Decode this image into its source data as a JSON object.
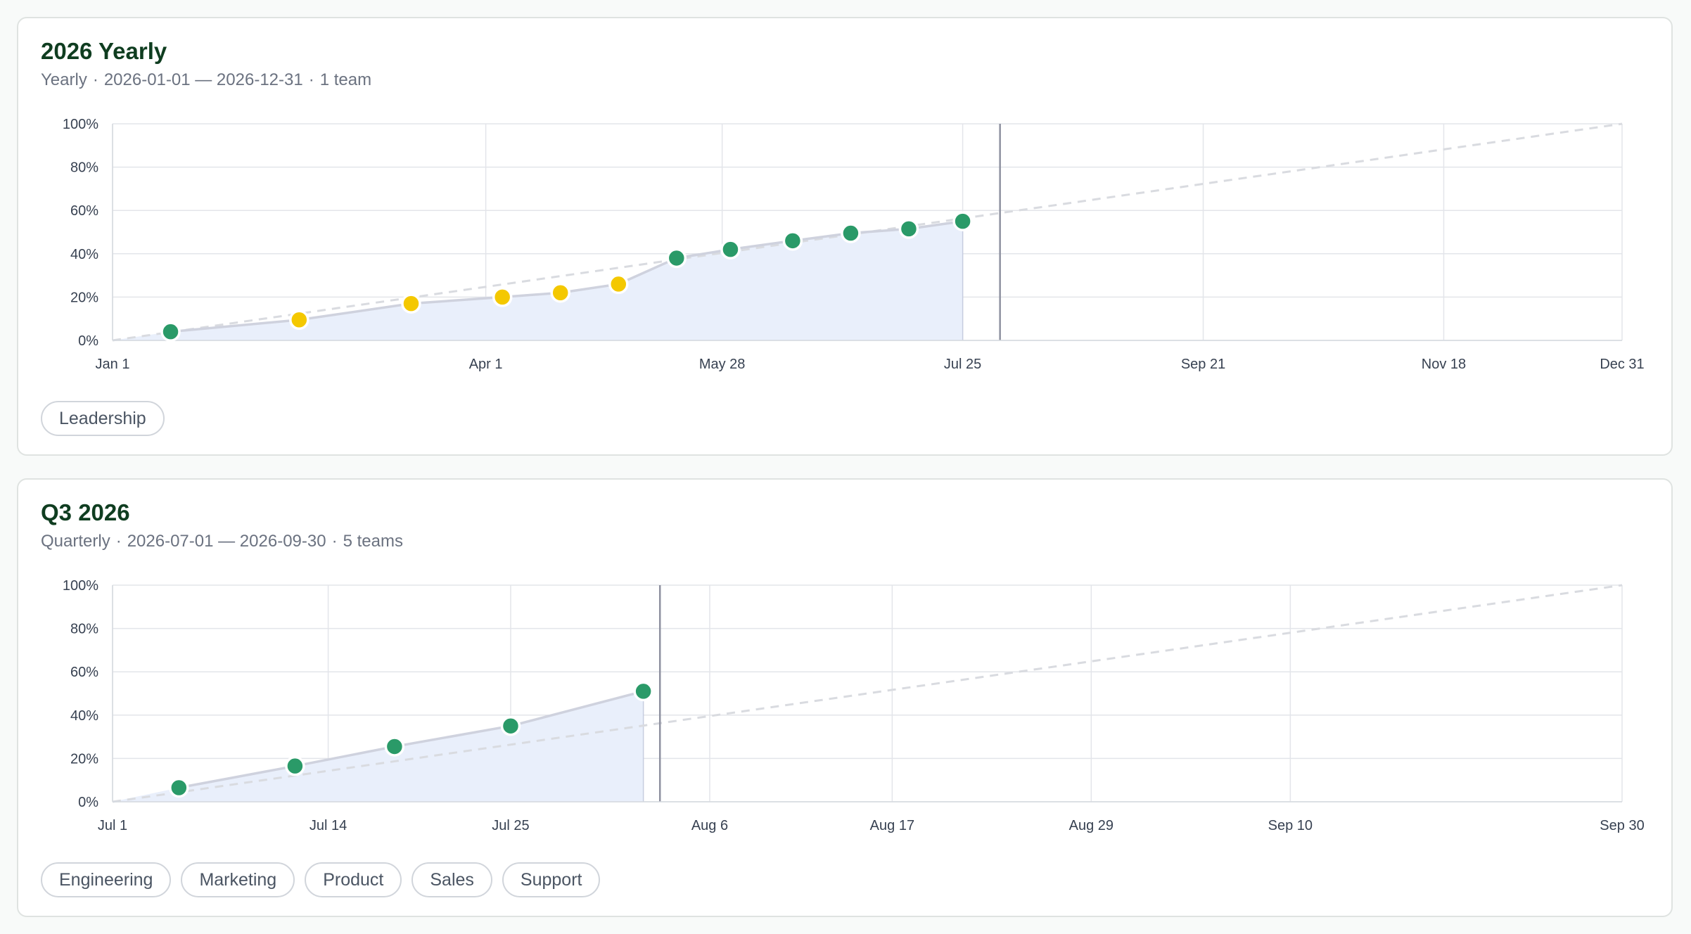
{
  "colors": {
    "on_track": "#2a9a68",
    "at_risk": "#f4c800",
    "area_fill": "#e9effb",
    "progress_line": "#cfd2de",
    "target_line": "#d9dbe0",
    "today_line": "#8e91a0",
    "grid": "#e3e5ea"
  },
  "cycles": [
    {
      "title": "2026 Yearly",
      "subtitle": {
        "period": "Yearly",
        "date_range": "2026-01-01 — 2026-12-31",
        "team_count": "1 team"
      },
      "teams": [
        "Leadership"
      ]
    },
    {
      "title": "Q3 2026",
      "subtitle": {
        "period": "Quarterly",
        "date_range": "2026-07-01 — 2026-09-30",
        "team_count": "5 teams"
      },
      "teams": [
        "Engineering",
        "Marketing",
        "Product",
        "Sales",
        "Support"
      ]
    }
  ],
  "chart_data": [
    {
      "type": "line",
      "title": "2026 Yearly",
      "x_range": [
        "2026-01-01",
        "2026-12-31"
      ],
      "ylim": [
        0,
        100
      ],
      "y_ticks": [
        "0%",
        "20%",
        "40%",
        "60%",
        "80%",
        "100%"
      ],
      "x_ticks": [
        {
          "date": "2026-01-01",
          "label": "Jan 1"
        },
        {
          "date": "2026-04-01",
          "label": "Apr 1"
        },
        {
          "date": "2026-05-28",
          "label": "May 28"
        },
        {
          "date": "2026-07-25",
          "label": "Jul 25"
        },
        {
          "date": "2026-09-21",
          "label": "Sep 21"
        },
        {
          "date": "2026-11-18",
          "label": "Nov 18"
        },
        {
          "date": "2026-12-31",
          "label": "Dec 31"
        }
      ],
      "today": "2026-08-03",
      "target_line": [
        [
          "2026-01-01",
          0
        ],
        [
          "2026-12-31",
          100
        ]
      ],
      "grid": true,
      "points": [
        {
          "date": "2026-01-15",
          "value": 4,
          "status": "on_track"
        },
        {
          "date": "2026-02-15",
          "value": 9.5,
          "status": "at_risk"
        },
        {
          "date": "2026-03-14",
          "value": 17,
          "status": "at_risk"
        },
        {
          "date": "2026-04-05",
          "value": 20,
          "status": "at_risk"
        },
        {
          "date": "2026-04-19",
          "value": 22,
          "status": "at_risk"
        },
        {
          "date": "2026-05-03",
          "value": 26,
          "status": "at_risk"
        },
        {
          "date": "2026-05-17",
          "value": 38,
          "status": "on_track"
        },
        {
          "date": "2026-05-30",
          "value": 42,
          "status": "on_track"
        },
        {
          "date": "2026-06-14",
          "value": 46,
          "status": "on_track"
        },
        {
          "date": "2026-06-28",
          "value": 49.5,
          "status": "on_track"
        },
        {
          "date": "2026-07-12",
          "value": 51.5,
          "status": "on_track"
        },
        {
          "date": "2026-07-25",
          "value": 55,
          "status": "on_track"
        }
      ]
    },
    {
      "type": "line",
      "title": "Q3 2026",
      "x_range": [
        "2026-07-01",
        "2026-09-30"
      ],
      "ylim": [
        0,
        100
      ],
      "y_ticks": [
        "0%",
        "20%",
        "40%",
        "60%",
        "80%",
        "100%"
      ],
      "x_ticks": [
        {
          "date": "2026-07-01",
          "label": "Jul 1"
        },
        {
          "date": "2026-07-14",
          "label": "Jul 14"
        },
        {
          "date": "2026-07-25",
          "label": "Jul 25"
        },
        {
          "date": "2026-08-06",
          "label": "Aug 6"
        },
        {
          "date": "2026-08-17",
          "label": "Aug 17"
        },
        {
          "date": "2026-08-29",
          "label": "Aug 29"
        },
        {
          "date": "2026-09-10",
          "label": "Sep 10"
        },
        {
          "date": "2026-09-30",
          "label": "Sep 30"
        }
      ],
      "today": "2026-08-03",
      "target_line": [
        [
          "2026-07-01",
          0
        ],
        [
          "2026-09-30",
          100
        ]
      ],
      "grid": true,
      "points": [
        {
          "date": "2026-07-05",
          "value": 6.5,
          "status": "on_track"
        },
        {
          "date": "2026-07-12",
          "value": 16.5,
          "status": "on_track"
        },
        {
          "date": "2026-07-18",
          "value": 25.5,
          "status": "on_track"
        },
        {
          "date": "2026-07-25",
          "value": 35,
          "status": "on_track"
        },
        {
          "date": "2026-08-02",
          "value": 51,
          "status": "on_track"
        }
      ]
    }
  ]
}
